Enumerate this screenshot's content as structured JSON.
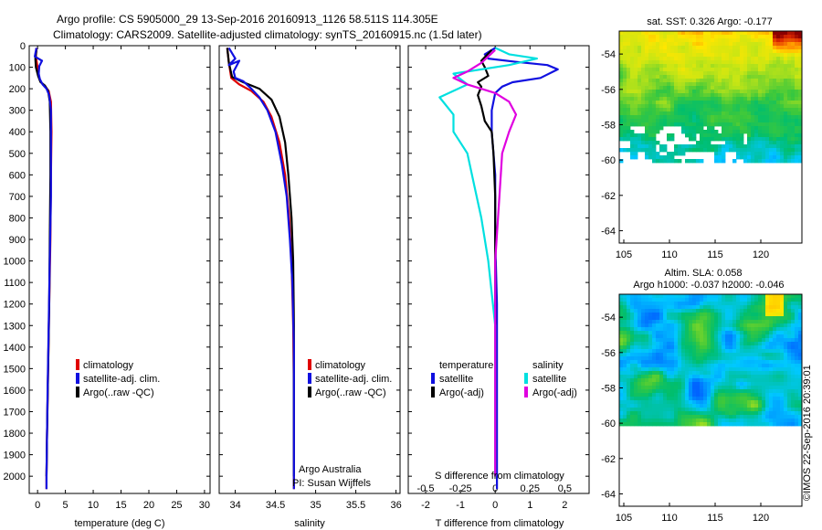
{
  "header": {
    "line1": "Argo profile: CS 5905000_29 13-Sep-2016 20160913_1126 58.511S 114.305E",
    "line2": "Climatology: CARS2009. Satellite-adjusted climatology: synTS_20160915.nc (1.5d later)"
  },
  "credit": "©IMOS 22-Sep-2016 20:39:01",
  "chart_data": [
    {
      "type": "line",
      "id": "temperature",
      "xlabel": "temperature (deg C)",
      "ylabel": "",
      "xlim": [
        -1.5,
        31
      ],
      "ylim": [
        2080,
        0
      ],
      "xticks": [
        0,
        5,
        10,
        15,
        20,
        25,
        30
      ],
      "xtick_labels": [
        "0",
        "5",
        "10",
        "15",
        "20",
        "25",
        "30"
      ],
      "yticks": [
        0,
        100,
        200,
        300,
        400,
        500,
        600,
        700,
        800,
        900,
        1000,
        1100,
        1200,
        1300,
        1400,
        1500,
        1600,
        1700,
        1800,
        1900,
        2000
      ],
      "ytick_labels": [
        "0",
        "100",
        "200",
        "300",
        "400",
        "500",
        "600",
        "700",
        "800",
        "900",
        "1000",
        "1100",
        "1200",
        "1300",
        "1400",
        "1500",
        "1600",
        "1700",
        "1800",
        "1900",
        "2000"
      ],
      "legend": [
        "climatology",
        "satellite-adj. clim.",
        "Argo(..raw -QC)"
      ],
      "series": [
        {
          "name": "climatology",
          "color": "#e00000",
          "points": [
            [
              -0.2,
              10
            ],
            [
              -0.3,
              50
            ],
            [
              0.0,
              100
            ],
            [
              0.2,
              140
            ],
            [
              0.6,
              170
            ],
            [
              1.4,
              190
            ],
            [
              2.0,
              210
            ],
            [
              2.4,
              260
            ],
            [
              2.5,
              400
            ],
            [
              2.4,
              600
            ],
            [
              2.3,
              900
            ],
            [
              2.1,
              1200
            ],
            [
              1.9,
              1500
            ],
            [
              1.7,
              1800
            ],
            [
              1.6,
              2000
            ],
            [
              1.6,
              2060
            ]
          ]
        },
        {
          "name": "Argo(..raw -QC)",
          "color": "#000000",
          "points": [
            [
              -0.2,
              20
            ],
            [
              -0.4,
              60
            ],
            [
              -0.3,
              100
            ],
            [
              0.1,
              140
            ],
            [
              0.5,
              168
            ],
            [
              1.3,
              185
            ],
            [
              1.9,
              210
            ],
            [
              2.2,
              260
            ],
            [
              2.3,
              400
            ],
            [
              2.3,
              600
            ],
            [
              2.2,
              900
            ],
            [
              2.1,
              1200
            ],
            [
              1.9,
              1500
            ],
            [
              1.7,
              1800
            ],
            [
              1.6,
              2000
            ]
          ]
        },
        {
          "name": "satellite-adj. clim.",
          "color": "#1010e0",
          "points": [
            [
              -0.2,
              10
            ],
            [
              -0.5,
              50
            ],
            [
              0.8,
              70
            ],
            [
              0.3,
              95
            ],
            [
              0.2,
              130
            ],
            [
              0.4,
              155
            ],
            [
              0.9,
              180
            ],
            [
              1.6,
              200
            ],
            [
              2.1,
              230
            ],
            [
              2.4,
              300
            ],
            [
              2.4,
              500
            ],
            [
              2.4,
              700
            ],
            [
              2.2,
              1000
            ],
            [
              2.0,
              1300
            ],
            [
              1.8,
              1600
            ],
            [
              1.6,
              2000
            ],
            [
              1.6,
              2060
            ]
          ]
        }
      ]
    },
    {
      "type": "line",
      "id": "salinity",
      "xlabel": "salinity",
      "ylabel": "",
      "xlim": [
        33.8,
        36.05
      ],
      "ylim": [
        2080,
        0
      ],
      "xticks": [
        34,
        34.5,
        35,
        35.5,
        36
      ],
      "xtick_labels": [
        "34",
        "34.5",
        "35",
        "35.5",
        "36"
      ],
      "legend": [
        "climatology",
        "satellite-adj. clim.",
        "Argo(..raw -QC)"
      ],
      "annotations": [
        "Argo Australia",
        "PI: Susan Wijffels"
      ],
      "series": [
        {
          "name": "climatology",
          "color": "#e00000",
          "points": [
            [
              33.9,
              10
            ],
            [
              33.92,
              80
            ],
            [
              33.95,
              150
            ],
            [
              34.05,
              180
            ],
            [
              34.2,
              210
            ],
            [
              34.35,
              260
            ],
            [
              34.45,
              330
            ],
            [
              34.55,
              450
            ],
            [
              34.62,
              600
            ],
            [
              34.67,
              800
            ],
            [
              34.7,
              1000
            ],
            [
              34.72,
              1300
            ],
            [
              34.73,
              1600
            ],
            [
              34.73,
              1900
            ],
            [
              34.73,
              2060
            ]
          ]
        },
        {
          "name": "Argo(..raw -QC)",
          "color": "#000000",
          "points": [
            [
              33.9,
              10
            ],
            [
              33.92,
              80
            ],
            [
              33.96,
              145
            ],
            [
              34.1,
              170
            ],
            [
              34.3,
              200
            ],
            [
              34.45,
              250
            ],
            [
              34.55,
              330
            ],
            [
              34.62,
              450
            ],
            [
              34.66,
              600
            ],
            [
              34.7,
              800
            ],
            [
              34.72,
              1000
            ],
            [
              34.73,
              1300
            ],
            [
              34.73,
              1600
            ],
            [
              34.73,
              2000
            ]
          ]
        },
        {
          "name": "satellite-adj. clim.",
          "color": "#1010e0",
          "points": [
            [
              33.92,
              10
            ],
            [
              34.0,
              60
            ],
            [
              33.92,
              90
            ],
            [
              34.05,
              70
            ],
            [
              33.98,
              120
            ],
            [
              34.0,
              150
            ],
            [
              34.1,
              165
            ],
            [
              34.2,
              200
            ],
            [
              34.3,
              240
            ],
            [
              34.4,
              300
            ],
            [
              34.5,
              400
            ],
            [
              34.58,
              550
            ],
            [
              34.64,
              700
            ],
            [
              34.68,
              900
            ],
            [
              34.71,
              1100
            ],
            [
              34.73,
              1400
            ],
            [
              34.73,
              1700
            ],
            [
              34.73,
              2060
            ]
          ]
        }
      ]
    },
    {
      "type": "line",
      "id": "difference",
      "xlabel": "T difference from climatology",
      "x2label": "S difference from climatology",
      "ylabel": "",
      "xlim": [
        -2.5,
        2.7
      ],
      "x2lim": [
        -0.625,
        0.675
      ],
      "ylim": [
        2080,
        0
      ],
      "xticks": [
        -2,
        -1,
        0,
        1,
        2
      ],
      "xtick_labels": [
        "-2",
        "-1",
        "0",
        "1",
        "2"
      ],
      "x2ticks": [
        -0.5,
        -0.25,
        0,
        0.25,
        0.5
      ],
      "x2tick_labels": [
        "-0.5",
        "-0.25",
        "0",
        "0.25",
        "0.5"
      ],
      "legend_groups": [
        {
          "title": "temperature",
          "items": [
            "satellite",
            "Argo(-adj)"
          ]
        },
        {
          "title": "salinity",
          "items": [
            "satellite",
            "Argo(-adj)"
          ]
        }
      ],
      "series": [
        {
          "name": "temperature satellite",
          "color": "#1010e0",
          "points": [
            [
              0.0,
              10
            ],
            [
              -0.3,
              40
            ],
            [
              -0.2,
              60
            ],
            [
              0.6,
              75
            ],
            [
              1.5,
              90
            ],
            [
              1.8,
              110
            ],
            [
              1.3,
              150
            ],
            [
              0.5,
              170
            ],
            [
              0.2,
              190
            ],
            [
              0.0,
              220
            ],
            [
              -0.1,
              300
            ],
            [
              -0.1,
              400
            ],
            [
              0.0,
              600
            ],
            [
              0.0,
              900
            ],
            [
              0.05,
              1200
            ],
            [
              0.05,
              1500
            ],
            [
              0.05,
              1800
            ],
            [
              0.05,
              2000
            ],
            [
              0.05,
              2060
            ]
          ]
        },
        {
          "name": "temperature Argo(-adj)",
          "color": "#000000",
          "points": [
            [
              -0.1,
              20
            ],
            [
              -0.4,
              70
            ],
            [
              -0.3,
              100
            ],
            [
              -0.2,
              140
            ],
            [
              -0.5,
              170
            ],
            [
              -0.4,
              190
            ],
            [
              -0.5,
              230
            ],
            [
              -0.4,
              280
            ],
            [
              -0.3,
              350
            ],
            [
              -0.1,
              400
            ],
            [
              -0.05,
              500
            ],
            [
              0.0,
              700
            ],
            [
              0.0,
              1000
            ],
            [
              0.0,
              1300
            ],
            [
              0.0,
              1600
            ],
            [
              0.0,
              2000
            ]
          ]
        },
        {
          "name": "salinity satellite",
          "color": "#00e0e0",
          "points": [
            [
              0.0,
              10
            ],
            [
              0.1,
              40
            ],
            [
              0.3,
              60
            ],
            [
              0.1,
              90
            ],
            [
              -0.3,
              130
            ],
            [
              -0.2,
              180
            ],
            [
              -0.4,
              240
            ],
            [
              -0.3,
              320
            ],
            [
              -0.3,
              400
            ],
            [
              -0.2,
              500
            ],
            [
              -0.15,
              650
            ],
            [
              -0.1,
              800
            ],
            [
              -0.05,
              1000
            ],
            [
              0.0,
              1300
            ],
            [
              0.0,
              1600
            ],
            [
              0.0,
              2000
            ]
          ]
        },
        {
          "name": "salinity Argo(-adj)",
          "color": "#e000e0",
          "points": [
            [
              0.0,
              20
            ],
            [
              -0.1,
              80
            ],
            [
              -0.2,
              120
            ],
            [
              -0.3,
              150
            ],
            [
              -0.2,
              180
            ],
            [
              0.0,
              220
            ],
            [
              0.1,
              260
            ],
            [
              0.15,
              320
            ],
            [
              0.1,
              400
            ],
            [
              0.05,
              500
            ],
            [
              0.03,
              700
            ],
            [
              0.0,
              1000
            ],
            [
              0.0,
              1300
            ],
            [
              0.0,
              1600
            ],
            [
              0.0,
              2000
            ]
          ]
        }
      ]
    },
    {
      "type": "heatmap",
      "id": "sst-map",
      "title": "sat. SST: 0.326 Argo: -0.177",
      "xlim": [
        104.5,
        124.5
      ],
      "ylim": [
        -64.7,
        -52.7
      ],
      "data_extent": {
        "lon": [
          104.5,
          124.5
        ],
        "lat": [
          -60,
          -52.7
        ]
      },
      "xticks": [
        105,
        110,
        115,
        120
      ],
      "xtick_labels": [
        "105",
        "110",
        "115",
        "120"
      ],
      "yticks": [
        -54,
        -56,
        -58,
        -60,
        -62,
        -64
      ],
      "ytick_labels": [
        "-54",
        "-56",
        "-58",
        "-60",
        "-62",
        "-64"
      ]
    },
    {
      "type": "heatmap",
      "id": "sla-map",
      "title": "Altim. SLA: 0.058",
      "subtitle": "Argo h1000: -0.037 h2000: -0.046",
      "xlim": [
        104.5,
        124.5
      ],
      "ylim": [
        -64.7,
        -52.7
      ],
      "data_extent": {
        "lon": [
          104.5,
          124.5
        ],
        "lat": [
          -60,
          -52.7
        ]
      },
      "xticks": [
        105,
        110,
        115,
        120
      ],
      "xtick_labels": [
        "105",
        "110",
        "115",
        "120"
      ],
      "yticks": [
        -54,
        -56,
        -58,
        -60,
        -62,
        -64
      ],
      "ytick_labels": [
        "-54",
        "-56",
        "-58",
        "-60",
        "-62",
        "-64"
      ]
    }
  ]
}
